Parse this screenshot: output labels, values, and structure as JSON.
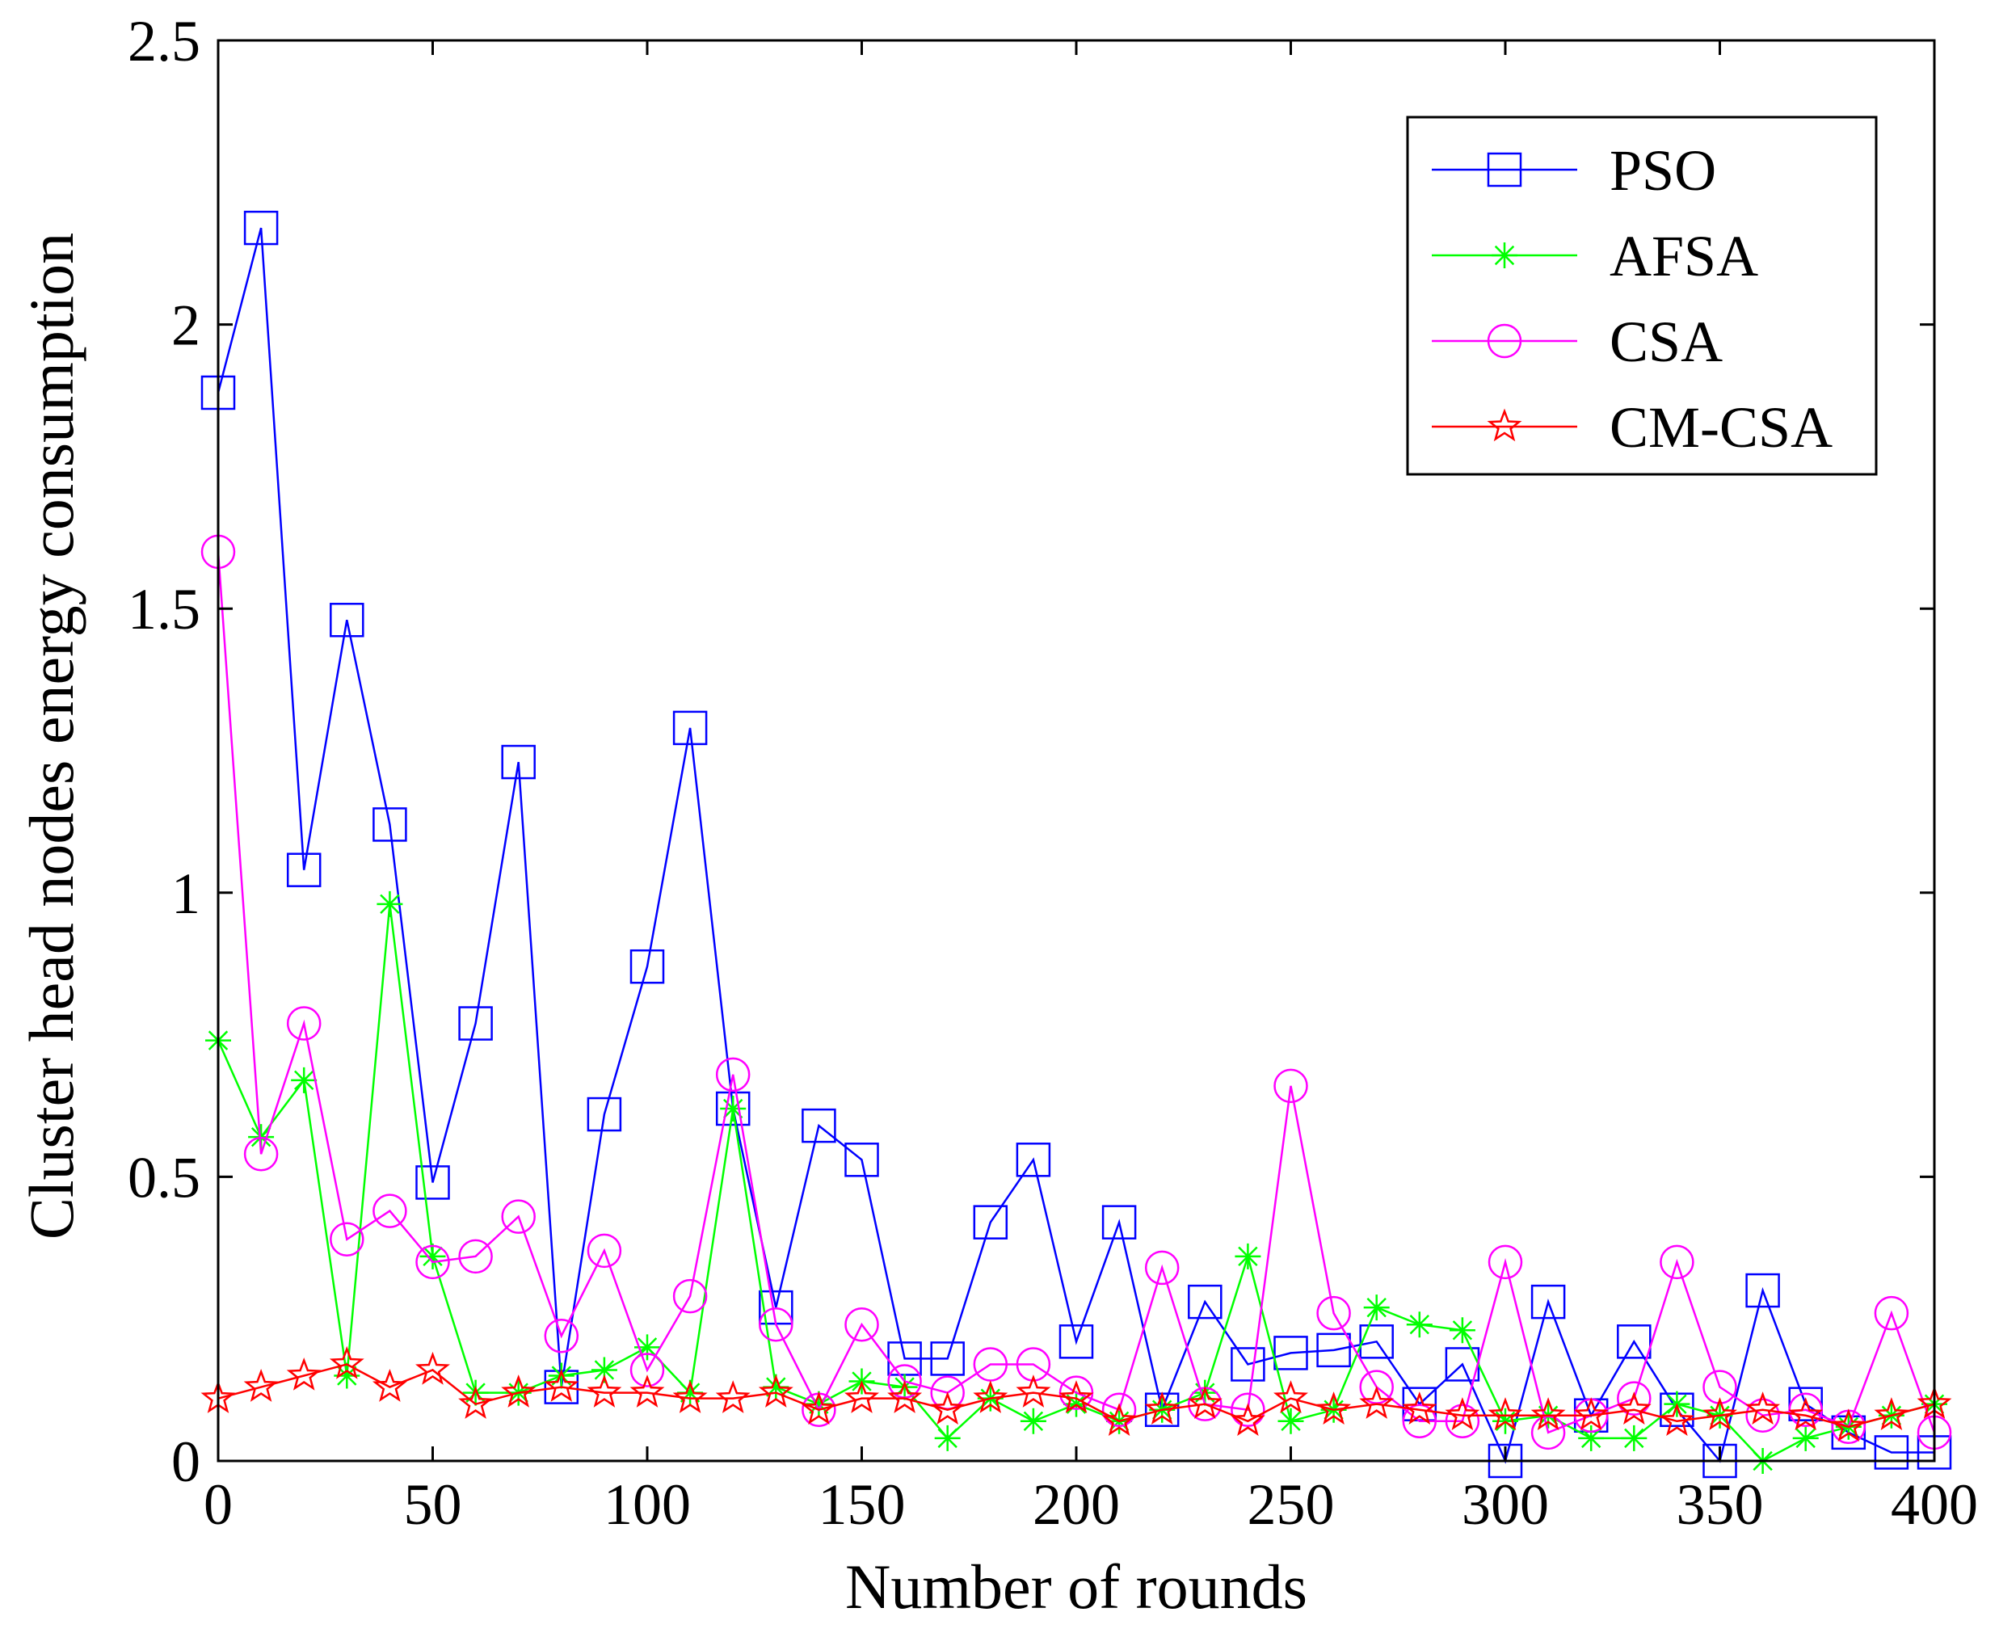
{
  "chart_data": {
    "type": "line",
    "title": "",
    "xlabel": "Number of rounds",
    "ylabel": "Cluster head nodes energy consumption",
    "xlim": [
      0,
      400
    ],
    "ylim": [
      0,
      2.5
    ],
    "xticks": [
      0,
      50,
      100,
      150,
      200,
      250,
      300,
      350,
      400
    ],
    "xtick_labels": [
      "0",
      "50",
      "100",
      "150",
      "200",
      "250",
      "300",
      "350",
      "400"
    ],
    "yticks": [
      0,
      0.5,
      1,
      1.5,
      2,
      2.5
    ],
    "ytick_labels": [
      "0",
      "0.5",
      "1",
      "1.5",
      "2",
      "2.5"
    ],
    "grid": false,
    "legend_position": "top-right",
    "x": [
      0,
      10,
      20,
      30,
      40,
      50,
      60,
      70,
      80,
      90,
      100,
      110,
      120,
      130,
      140,
      150,
      160,
      170,
      180,
      190,
      200,
      210,
      220,
      230,
      240,
      250,
      260,
      270,
      280,
      290,
      300,
      310,
      320,
      330,
      340,
      350,
      360,
      370,
      380,
      390,
      400
    ],
    "series": [
      {
        "name": "PSO",
        "color": "#0000ff",
        "marker": "square",
        "values": [
          1.88,
          2.17,
          1.04,
          1.48,
          1.12,
          0.49,
          0.77,
          1.23,
          0.13,
          0.61,
          0.87,
          1.29,
          0.62,
          0.27,
          0.59,
          0.53,
          0.18,
          0.18,
          0.42,
          0.53,
          0.21,
          0.42,
          0.09,
          0.28,
          0.17,
          0.19,
          0.195,
          0.21,
          0.1,
          0.17,
          0.0,
          0.28,
          0.08,
          0.21,
          0.09,
          0.0,
          0.3,
          0.1,
          0.05,
          0.015,
          0.015
        ]
      },
      {
        "name": "AFSA",
        "color": "#00ff00",
        "marker": "asterisk",
        "values": [
          0.74,
          0.57,
          0.67,
          0.15,
          0.98,
          0.36,
          0.12,
          0.12,
          0.15,
          0.16,
          0.2,
          0.12,
          0.62,
          0.13,
          0.1,
          0.14,
          0.13,
          0.04,
          0.11,
          0.07,
          0.1,
          0.07,
          0.09,
          0.12,
          0.36,
          0.07,
          0.09,
          0.27,
          0.24,
          0.23,
          0.07,
          0.08,
          0.04,
          0.04,
          0.1,
          0.08,
          0.0,
          0.04,
          0.06,
          0.08,
          0.1
        ]
      },
      {
        "name": "CSA",
        "color": "#ff00ff",
        "marker": "circle",
        "values": [
          1.6,
          0.54,
          0.77,
          0.39,
          0.44,
          0.35,
          0.36,
          0.43,
          0.22,
          0.37,
          0.16,
          0.29,
          0.68,
          0.24,
          0.09,
          0.24,
          0.14,
          0.12,
          0.17,
          0.17,
          0.12,
          0.09,
          0.34,
          0.1,
          0.09,
          0.66,
          0.26,
          0.13,
          0.07,
          0.07,
          0.35,
          0.05,
          0.08,
          0.11,
          0.35,
          0.13,
          0.08,
          0.09,
          0.06,
          0.26,
          0.05
        ]
      },
      {
        "name": "CM-CSA",
        "color": "#ff0000",
        "marker": "star",
        "values": [
          0.11,
          0.13,
          0.15,
          0.17,
          0.13,
          0.16,
          0.1,
          0.12,
          0.13,
          0.12,
          0.12,
          0.11,
          0.11,
          0.12,
          0.09,
          0.11,
          0.11,
          0.09,
          0.11,
          0.12,
          0.11,
          0.07,
          0.09,
          0.1,
          0.07,
          0.11,
          0.09,
          0.1,
          0.09,
          0.08,
          0.08,
          0.08,
          0.08,
          0.09,
          0.07,
          0.08,
          0.09,
          0.08,
          0.06,
          0.08,
          0.1
        ]
      }
    ]
  }
}
